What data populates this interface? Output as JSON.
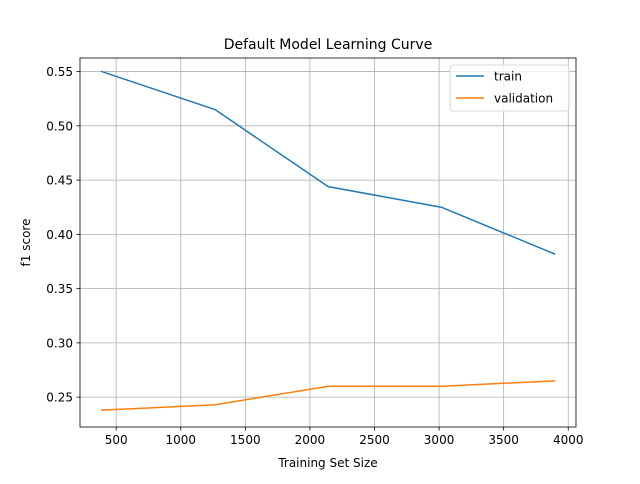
{
  "chart_data": {
    "type": "line",
    "title": "Default Model Learning Curve",
    "xlabel": "Training Set Size",
    "ylabel": "f1 score",
    "xlim": [
      220,
      4060
    ],
    "ylim": [
      0.2225,
      0.5625
    ],
    "xticks": [
      500,
      1000,
      1500,
      2000,
      2500,
      3000,
      3500,
      4000
    ],
    "xtick_labels": [
      "500",
      "1000",
      "1500",
      "2000",
      "2500",
      "3000",
      "3500",
      "4000"
    ],
    "yticks": [
      0.25,
      0.3,
      0.35,
      0.4,
      0.45,
      0.5,
      0.55
    ],
    "ytick_labels": [
      "0.25",
      "0.30",
      "0.35",
      "0.40",
      "0.45",
      "0.50",
      "0.55"
    ],
    "grid": true,
    "legend_position": "top-right",
    "x": [
      389,
      1265,
      2141,
      3017,
      3893
    ],
    "series": [
      {
        "name": "train",
        "color": "#1f77b4",
        "values": [
          0.55,
          0.515,
          0.444,
          0.425,
          0.382
        ]
      },
      {
        "name": "validation",
        "color": "#ff7f0e",
        "values": [
          0.238,
          0.243,
          0.26,
          0.26,
          0.265
        ]
      }
    ]
  }
}
